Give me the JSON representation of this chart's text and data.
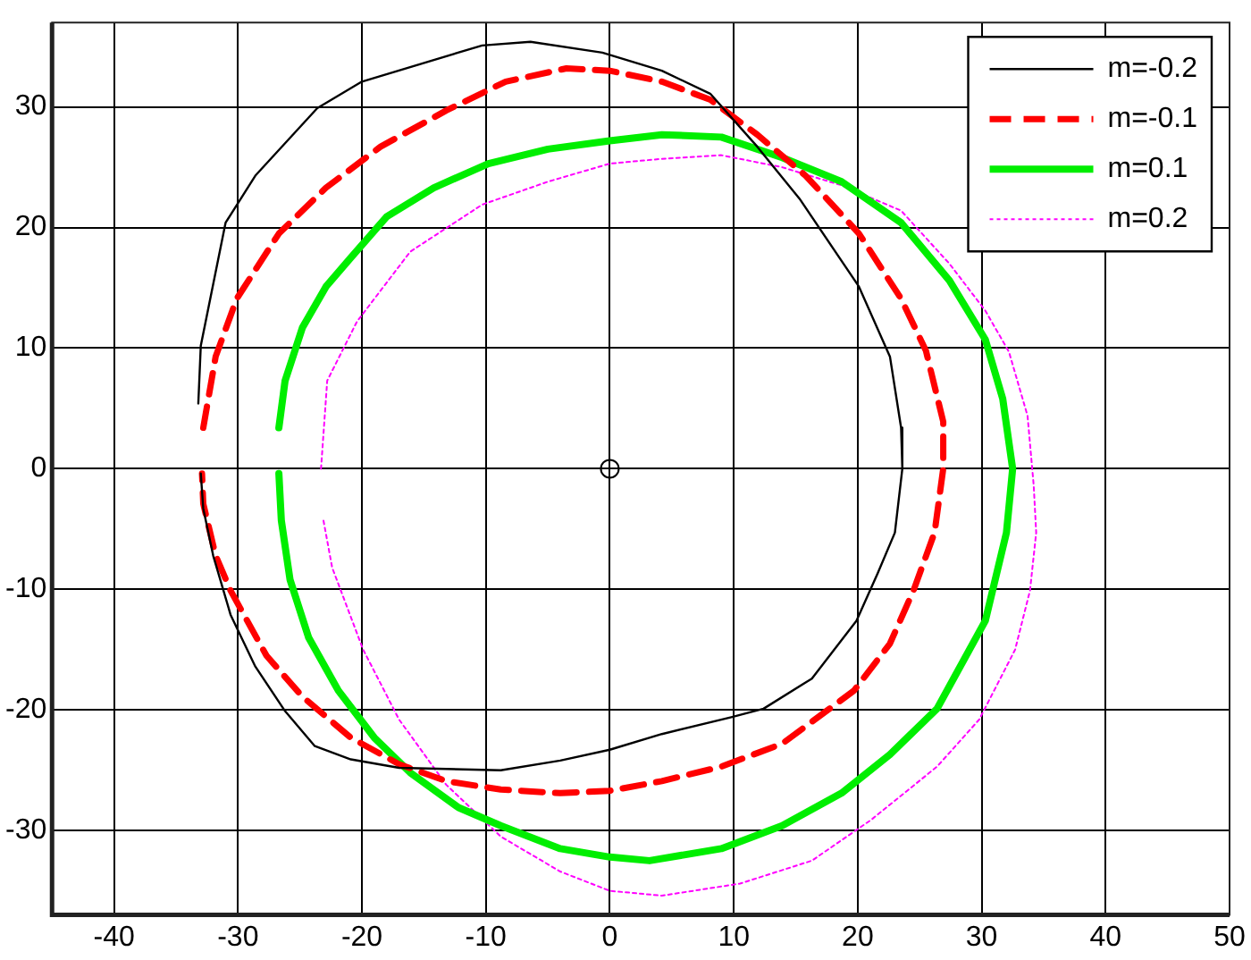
{
  "chart_data": {
    "type": "line",
    "xlim": [
      -45,
      50
    ],
    "ylim": [
      -37,
      37
    ],
    "xticks": [
      -40,
      -30,
      -20,
      -10,
      0,
      10,
      20,
      30,
      40,
      50
    ],
    "yticks": [
      -30,
      -20,
      -10,
      0,
      10,
      20,
      30
    ],
    "grid": true,
    "legend": "top right",
    "marker": "none",
    "series": [
      {
        "name": "m=-0.2",
        "color": "#000000",
        "line_style": "solid",
        "x": [
          -33.2,
          -33,
          -31,
          -28.6,
          -23.6,
          -20,
          -10.3,
          -6.4,
          -0.6,
          4.2,
          8.1,
          11.9,
          15.3,
          20.1,
          22.6,
          23.5,
          23.6,
          23,
          21.6,
          19.9,
          16.3,
          12.4,
          9.8,
          4.2,
          0,
          -4,
          -8.8,
          -17,
          -20.9,
          -23.8,
          -26.2,
          -28.6,
          -30.6,
          -32,
          -32.8,
          -33
        ],
        "values": [
          5.4,
          10.2,
          20.4,
          24.3,
          29.9,
          32.1,
          35.1,
          35.4,
          34.5,
          33,
          31.1,
          26.7,
          22.4,
          15.1,
          9.3,
          3.4,
          0,
          -5.3,
          -8.7,
          -12.6,
          -17.4,
          -19.9,
          -20.6,
          -22,
          -23.3,
          -24.2,
          -25,
          -24.8,
          -24.1,
          -23,
          -20.1,
          -16.4,
          -12.1,
          -7.2,
          -3.3,
          -0.4
        ]
      },
      {
        "name": "m=-0.1",
        "color": "#ff0000",
        "line_style": "dashed",
        "x": [
          -32.8,
          -31.8,
          -30.1,
          -26.7,
          -22.9,
          -18.5,
          -13.2,
          -8.4,
          -3.5,
          0,
          4.2,
          8.1,
          11.9,
          15.8,
          20.1,
          23.5,
          25.5,
          26.9,
          26.9,
          26.2,
          24.5,
          22.6,
          19.7,
          13.9,
          9,
          4.2,
          0,
          -4,
          -8.8,
          -13.2,
          -17,
          -20.9,
          -24.8,
          -27.7,
          -30.6,
          -31.8,
          -32.8,
          -32.9
        ],
        "values": [
          3.4,
          9.3,
          14.1,
          19.5,
          23.3,
          26.7,
          29.7,
          32.1,
          33.2,
          33,
          32.1,
          30.6,
          27.7,
          24.3,
          19.5,
          14.1,
          9.8,
          3.9,
          0,
          -5.3,
          -10.1,
          -14.5,
          -18.4,
          -22.8,
          -24.7,
          -25.9,
          -26.7,
          -26.9,
          -26.6,
          -25.9,
          -24.5,
          -22.3,
          -18.9,
          -15.5,
          -10.1,
          -7.2,
          -2.9,
          -0.4
        ]
      },
      {
        "name": "m=0.1",
        "color": "#00ee00",
        "line_style": "solid",
        "x": [
          -26.7,
          -26.2,
          -24.8,
          -22.9,
          -20.9,
          -18,
          -14.2,
          -9.8,
          -5,
          0,
          4.2,
          9,
          13.9,
          18.7,
          23.5,
          27.4,
          30.3,
          31.7,
          32.5,
          32,
          30.3,
          26.4,
          22.6,
          18.7,
          13.9,
          9,
          3.2,
          0,
          -4,
          -8.8,
          -12.2,
          -16.1,
          -19,
          -21.9,
          -24.3,
          -25.8,
          -26.5,
          -26.7
        ],
        "values": [
          3.4,
          7.3,
          11.7,
          15.1,
          17.5,
          20.9,
          23.3,
          25.3,
          26.5,
          27.2,
          27.7,
          27.5,
          25.8,
          23.8,
          20.4,
          15.6,
          10.7,
          5.8,
          0,
          -5.3,
          -12.6,
          -19.9,
          -23.7,
          -26.9,
          -29.6,
          -31.5,
          -32.5,
          -32.2,
          -31.5,
          -29.6,
          -28.1,
          -25.2,
          -22.3,
          -18.4,
          -14,
          -9.2,
          -4.3,
          -0.4
        ]
      },
      {
        "name": "m=0.2",
        "color": "#ff00ff",
        "line_style": "dotted",
        "x": [
          -23.3,
          -22.8,
          -20.4,
          -16.1,
          -10.3,
          -5,
          0,
          4.2,
          9,
          13.9,
          18.7,
          23.5,
          27.4,
          30.3,
          32.2,
          33.7,
          34.2,
          34.4,
          33.9,
          32.7,
          29.8,
          26.4,
          21.1,
          16.3,
          10.5,
          4.2,
          0,
          -4,
          -8.8,
          -13.2,
          -17,
          -19.9,
          -22.4,
          -23.1
        ],
        "values": [
          0,
          7.3,
          12.2,
          18,
          21.9,
          23.8,
          25.3,
          25.7,
          26,
          25,
          23.5,
          21.4,
          17,
          13.1,
          9.7,
          4.4,
          -1.4,
          -5.3,
          -10.1,
          -15,
          -20.8,
          -24.7,
          -29.1,
          -32.5,
          -34.4,
          -35.4,
          -35,
          -33.4,
          -30.5,
          -26.2,
          -20.8,
          -15,
          -8.2,
          -4.3
        ]
      },
      {
        "type": "scatter",
        "color": "#000000",
        "marker": "circle",
        "x": [
          0
        ],
        "values": [
          0
        ]
      }
    ]
  }
}
